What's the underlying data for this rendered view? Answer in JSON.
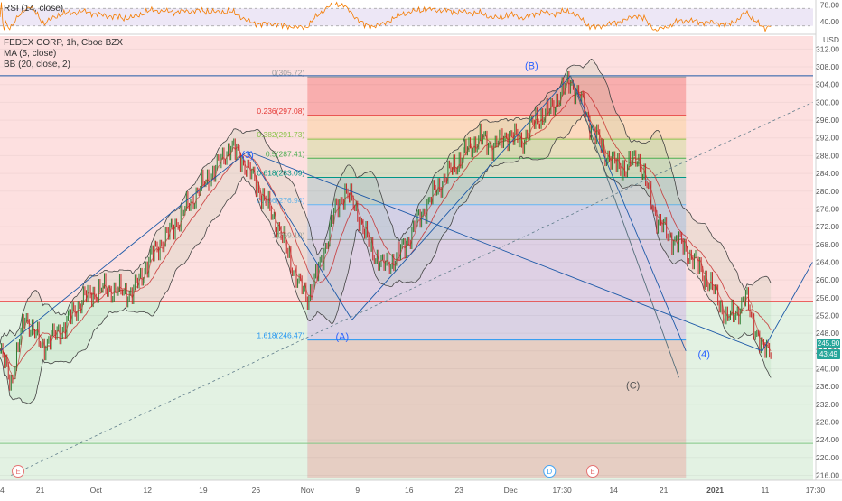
{
  "header": {
    "symbol_line": "FEDEX CORP, 1h, Cboe BZX",
    "ma_line": "MA (5, close)",
    "bb_line": "BB (20, close, 2)",
    "rsi_line": "RSI (14, close)",
    "currency": "USD"
  },
  "price_badge": {
    "value": "245.90",
    "countdown": "43:49",
    "color": "#26a69a"
  },
  "colors": {
    "rsi_line": "#f57c00",
    "rsi_band": "#ede7f6",
    "price_line": "#2e7d32",
    "ma_line": "#c62828",
    "bb_line": "#444444",
    "trend_line": "#1e5aa8",
    "wave_label": "#2962ff",
    "wave_label_c": "#555555",
    "upper_zone": "#fde0e0",
    "lower_zone": "#e3f2e3",
    "event_e": "#e57373",
    "event_d": "#42a5f5"
  },
  "chart_data": [
    {
      "type": "line",
      "title": "RSI (14, close)",
      "ylim": [
        15,
        85
      ],
      "ticks": [
        "78.00",
        "40.00"
      ],
      "levels": [
        70,
        30
      ],
      "series": []
    },
    {
      "type": "line",
      "title": "FEDEX CORP, 1h, Cboe BZX",
      "y_axis_label": "USD",
      "ylim": [
        214,
        316
      ],
      "y_ticks": [
        312,
        308,
        304,
        300,
        296,
        292,
        288,
        284,
        280,
        276,
        272,
        268,
        264,
        260,
        256,
        252,
        248,
        244,
        240,
        236,
        232,
        228,
        224,
        220,
        216
      ],
      "x_ticks": [
        "14",
        "21",
        "Oct",
        "12",
        "19",
        "26",
        "Nov",
        "9",
        "16",
        "23",
        "Dec",
        "17:30",
        "14",
        "21",
        "2021",
        "11",
        "17:30"
      ],
      "x_tick_index": [
        0,
        29,
        69,
        106,
        146,
        184,
        221,
        257,
        294,
        330,
        367,
        404,
        441,
        477,
        514,
        550,
        586
      ],
      "x_max_index": 600,
      "price_anchors": [
        [
          0,
          244
        ],
        [
          8,
          237
        ],
        [
          18,
          252
        ],
        [
          30,
          245
        ],
        [
          45,
          249
        ],
        [
          60,
          256
        ],
        [
          75,
          258
        ],
        [
          95,
          257
        ],
        [
          110,
          266
        ],
        [
          125,
          272
        ],
        [
          140,
          279
        ],
        [
          155,
          285
        ],
        [
          165,
          290
        ],
        [
          172,
          288
        ],
        [
          180,
          284
        ],
        [
          190,
          278
        ],
        [
          200,
          272
        ],
        [
          208,
          265
        ],
        [
          215,
          259
        ],
        [
          221,
          256
        ],
        [
          230,
          263
        ],
        [
          240,
          275
        ],
        [
          248,
          280
        ],
        [
          256,
          276
        ],
        [
          265,
          268
        ],
        [
          275,
          263
        ],
        [
          285,
          265
        ],
        [
          295,
          270
        ],
        [
          305,
          276
        ],
        [
          315,
          281
        ],
        [
          325,
          285
        ],
        [
          335,
          289
        ],
        [
          345,
          292
        ],
        [
          355,
          290
        ],
        [
          365,
          293
        ],
        [
          375,
          291
        ],
        [
          385,
          296
        ],
        [
          395,
          298
        ],
        [
          403,
          302
        ],
        [
          410,
          305
        ],
        [
          418,
          300
        ],
        [
          426,
          294
        ],
        [
          434,
          289
        ],
        [
          442,
          286
        ],
        [
          450,
          285
        ],
        [
          458,
          288
        ],
        [
          466,
          280
        ],
        [
          472,
          274
        ],
        [
          480,
          270
        ],
        [
          490,
          268
        ],
        [
          500,
          264
        ],
        [
          508,
          260
        ],
        [
          516,
          256
        ],
        [
          522,
          251
        ],
        [
          530,
          253
        ],
        [
          536,
          256
        ],
        [
          542,
          250
        ],
        [
          548,
          244
        ],
        [
          554,
          245
        ]
      ],
      "bb_width": 6,
      "fib_levels": [
        {
          "ratio": "0",
          "label": "0(305.72)",
          "price": 305.72,
          "fill": "#f8a5a5"
        },
        {
          "ratio": "0.236",
          "label": "0.236(297.08)",
          "price": 297.08,
          "fill": "#fbd7b7"
        },
        {
          "ratio": "0.382",
          "label": "0.382(291.73)",
          "price": 291.73,
          "fill": "#e3ddb6"
        },
        {
          "ratio": "0.5",
          "label": "0.5(287.41)",
          "price": 287.41,
          "fill": "#d2dcc0"
        },
        {
          "ratio": "0.618",
          "label": "0.618(283.09)",
          "price": 283.09,
          "fill": "#c7cfcf"
        },
        {
          "ratio": "0.786",
          "label": "0.786(276.94)",
          "price": 276.94,
          "fill": "#cbcde6"
        },
        {
          "ratio": "1",
          "label": "1(269.10)",
          "price": 269.1,
          "fill": "#d8cde4"
        },
        {
          "ratio": "1.618",
          "label": "1.618(246.47)",
          "price": 246.47,
          "fill": "#b9dcf2"
        }
      ],
      "fib_x_start": 221,
      "fib_x_end": 493,
      "fib_level_colors": [
        "#9e9e9e",
        "#e53935",
        "#8bc34a",
        "#4caf50",
        "#009688",
        "#64b5f6",
        "#9e9e9e",
        "#2196f3"
      ],
      "fib_band_bottom_price": 215.5,
      "fib_bottom_fill": "#f0c9b8",
      "horizontal_levels": [
        {
          "price": 306,
          "color": "#1e5aa8"
        },
        {
          "price": 255.2,
          "color": "#e53935"
        },
        {
          "price": 223.2,
          "color": "#81c784"
        }
      ],
      "wave_labels": [
        {
          "text": "(3)",
          "x": 178,
          "y": 287.5
        },
        {
          "text": "(A)",
          "x": 246,
          "y": 246.5
        },
        {
          "text": "(B)",
          "x": 382,
          "y": 307.5
        },
        {
          "text": "(C)",
          "x": 455,
          "y": 235.5
        },
        {
          "text": "(4)",
          "x": 506,
          "y": 242.5
        }
      ],
      "event_markers": [
        {
          "text": "E",
          "x": 13,
          "kind": "earnings"
        },
        {
          "text": "D",
          "x": 395,
          "kind": "dividend"
        },
        {
          "text": "E",
          "x": 426,
          "kind": "earnings"
        }
      ]
    }
  ]
}
